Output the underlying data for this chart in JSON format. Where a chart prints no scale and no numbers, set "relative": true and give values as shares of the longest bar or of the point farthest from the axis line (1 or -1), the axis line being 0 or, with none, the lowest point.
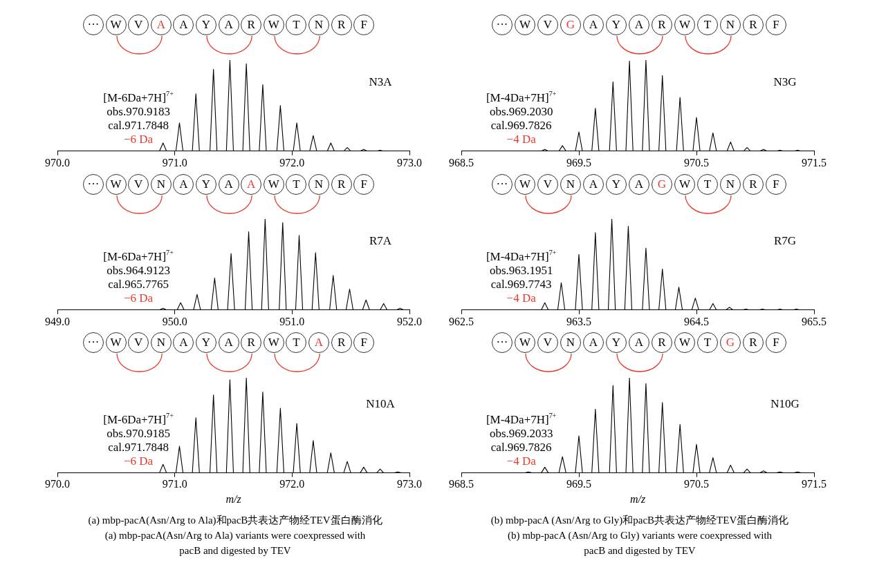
{
  "chart_data": [
    {
      "type": "other",
      "categories": [
        "···",
        "W",
        "V",
        "A",
        "A",
        "Y",
        "A",
        "R",
        "W",
        "T",
        "N",
        "R",
        "F"
      ]
    },
    {
      "type": "other",
      "categories": [
        "···",
        "W",
        "V",
        "G",
        "A",
        "Y",
        "A",
        "R",
        "W",
        "T",
        "N",
        "R",
        "F"
      ]
    },
    {
      "type": "line",
      "relative": true,
      "xlim": [
        970.0,
        973.0
      ],
      "xticks": [
        {
          "value": 970,
          "label": "970.0"
        },
        {
          "value": 971,
          "label": "971.0"
        },
        {
          "value": 972,
          "label": "972.0"
        },
        {
          "value": 973,
          "label": "973.0"
        }
      ],
      "annotations": [
        "N3A",
        "[M-6Da+7H]$^{7+}$",
        "obs.970.9183",
        "cal.971.7848",
        "−6 Da"
      ],
      "series": [
        {
          "color": "#000000",
          "x": [
            970.0,
            970.87,
            970.9,
            970.93,
            971.01,
            971.04,
            971.07,
            971.15,
            971.18,
            971.21,
            971.3,
            971.33,
            971.36,
            971.44,
            971.47,
            971.5,
            971.58,
            971.61,
            971.64,
            971.72,
            971.75,
            971.78,
            971.87,
            971.9,
            971.93,
            972.01,
            972.04,
            972.07,
            972.15,
            972.18,
            972.21,
            972.3,
            972.33,
            972.36,
            972.44,
            972.47,
            972.5,
            972.58,
            972.61,
            972.64,
            972.72,
            972.75,
            972.78,
            973.0
          ],
          "values": [
            0,
            0,
            0.09,
            0,
            0,
            0.31,
            0,
            0,
            0.63,
            0,
            0,
            0.9,
            0,
            0,
            1,
            0,
            0,
            0.96,
            0,
            0,
            0.73,
            0,
            0,
            0.5,
            0,
            0,
            0.31,
            0,
            0,
            0.17,
            0,
            0,
            0.09,
            0,
            0,
            0.04,
            0,
            0,
            0.02,
            0,
            0,
            0.01,
            0,
            0
          ]
        }
      ]
    },
    {
      "type": "line",
      "relative": true,
      "xlim": [
        968.5,
        971.5
      ],
      "xticks": [
        {
          "value": 968.5,
          "label": "968.5"
        },
        {
          "value": 969.5,
          "label": "969.5"
        },
        {
          "value": 970.5,
          "label": "970.5"
        },
        {
          "value": 971.5,
          "label": "971.5"
        }
      ],
      "annotations": [
        "N3G",
        "[M-4Da+7H]$^{7+}$",
        "obs.969.2030",
        "cal.969.7826",
        "−4 Da"
      ],
      "series": [
        {
          "color": "#000000",
          "x": [
            968.5,
            969.18,
            969.21,
            969.24,
            969.33,
            969.36,
            969.39,
            969.47,
            969.5,
            969.53,
            969.61,
            969.64,
            969.67,
            969.76,
            969.79,
            969.82,
            969.9,
            969.93,
            969.96,
            970.04,
            970.07,
            970.1,
            970.18,
            970.21,
            970.24,
            970.33,
            970.36,
            970.39,
            970.47,
            970.5,
            970.53,
            970.61,
            970.64,
            970.67,
            970.76,
            970.79,
            970.82,
            970.9,
            970.93,
            970.96,
            971.04,
            971.07,
            971.1,
            971.18,
            971.21,
            971.24,
            971.33,
            971.36,
            971.39,
            971.5
          ],
          "values": [
            0,
            0,
            0.02,
            0,
            0,
            0.06,
            0,
            0,
            0.21,
            0,
            0,
            0.47,
            0,
            0,
            0.76,
            0,
            0,
            0.99,
            0,
            0,
            1,
            0,
            0,
            0.83,
            0,
            0,
            0.59,
            0,
            0,
            0.37,
            0,
            0,
            0.2,
            0,
            0,
            0.1,
            0,
            0,
            0.04,
            0,
            0,
            0.02,
            0,
            0,
            0.01,
            0,
            0,
            0.01,
            0,
            0
          ]
        }
      ]
    },
    {
      "type": "other",
      "categories": [
        "···",
        "W",
        "V",
        "N",
        "A",
        "Y",
        "A",
        "A",
        "W",
        "T",
        "N",
        "R",
        "F"
      ]
    },
    {
      "type": "other",
      "categories": [
        "···",
        "W",
        "V",
        "N",
        "A",
        "Y",
        "A",
        "G",
        "W",
        "T",
        "N",
        "R",
        "F"
      ]
    },
    {
      "type": "line",
      "relative": true,
      "xlim": [
        949.0,
        952.0
      ],
      "xticks": [
        {
          "value": 949,
          "label": "949.0"
        },
        {
          "value": 950,
          "label": "950.0"
        },
        {
          "value": 951,
          "label": "951.0"
        },
        {
          "value": 952,
          "label": "952.0"
        }
      ],
      "annotations": [
        "R7A",
        "[M-6Da+7H]$^{7+}$",
        "obs.964.9123",
        "cal.965.7765",
        "−6 Da"
      ],
      "series": [
        {
          "color": "#000000",
          "x": [
            949.8,
            949.87,
            949.9,
            949.93,
            950.02,
            950.05,
            950.08,
            950.16,
            950.19,
            950.22,
            950.31,
            950.34,
            950.37,
            950.45,
            950.48,
            950.51,
            950.6,
            950.63,
            950.66,
            950.74,
            950.77,
            950.8,
            950.89,
            950.92,
            950.95,
            951.03,
            951.06,
            951.09,
            951.17,
            951.2,
            951.23,
            951.32,
            951.35,
            951.38,
            951.46,
            951.49,
            951.52,
            951.6,
            951.63,
            951.66,
            951.75,
            951.78,
            951.81,
            951.89,
            951.92,
            951.95,
            952.0
          ],
          "values": [
            0,
            0,
            0.02,
            0,
            0,
            0.08,
            0,
            0,
            0.17,
            0,
            0,
            0.35,
            0,
            0,
            0.62,
            0,
            0,
            0.86,
            0,
            0,
            1,
            0,
            0,
            0.96,
            0,
            0,
            0.82,
            0,
            0,
            0.63,
            0,
            0,
            0.38,
            0,
            0,
            0.23,
            0,
            0,
            0.11,
            0,
            0,
            0.07,
            0,
            0,
            0.02,
            0,
            0
          ]
        }
      ]
    },
    {
      "type": "line",
      "relative": true,
      "xlim": [
        962.5,
        965.5
      ],
      "xticks": [
        {
          "value": 962.5,
          "label": "962.5"
        },
        {
          "value": 963.5,
          "label": "963.5"
        },
        {
          "value": 964.5,
          "label": "964.5"
        },
        {
          "value": 965.5,
          "label": "965.5"
        }
      ],
      "annotations": [
        "R7G",
        "[M-4Da+7H]$^{7+}$",
        "obs.963.1951",
        "cal.969.7743",
        "−4 Da"
      ],
      "series": [
        {
          "color": "#000000",
          "x": [
            962.5,
            963.18,
            963.21,
            963.24,
            963.32,
            963.35,
            963.38,
            963.47,
            963.5,
            963.53,
            963.61,
            963.64,
            963.67,
            963.75,
            963.78,
            963.81,
            963.89,
            963.92,
            963.95,
            964.04,
            964.07,
            964.1,
            964.18,
            964.21,
            964.24,
            964.32,
            964.35,
            964.38,
            964.46,
            964.49,
            964.52,
            964.61,
            964.64,
            964.67,
            964.75,
            964.78,
            964.81,
            964.89,
            964.92,
            964.95,
            965.03,
            965.06,
            965.09,
            965.18,
            965.21,
            965.24,
            965.32,
            965.35,
            965.38,
            965.5
          ],
          "values": [
            0,
            0,
            0.08,
            0,
            0,
            0.3,
            0,
            0,
            0.61,
            0,
            0,
            0.85,
            0,
            0,
            1,
            0,
            0,
            0.92,
            0,
            0,
            0.68,
            0,
            0,
            0.45,
            0,
            0,
            0.25,
            0,
            0,
            0.13,
            0,
            0,
            0.07,
            0,
            0,
            0.03,
            0,
            0,
            0.01,
            0,
            0,
            0.01,
            0,
            0,
            0.01,
            0,
            0,
            0.01,
            0,
            0
          ]
        }
      ]
    },
    {
      "type": "other",
      "categories": [
        "···",
        "W",
        "V",
        "N",
        "A",
        "Y",
        "A",
        "R",
        "W",
        "T",
        "A",
        "R",
        "F"
      ]
    },
    {
      "type": "other",
      "categories": [
        "···",
        "W",
        "V",
        "N",
        "A",
        "Y",
        "A",
        "R",
        "W",
        "T",
        "G",
        "R",
        "F"
      ]
    },
    {
      "type": "line",
      "relative": true,
      "xlabel": "m/z",
      "xlim": [
        970.0,
        973.0
      ],
      "xticks": [
        {
          "value": 970,
          "label": "970.0"
        },
        {
          "value": 971,
          "label": "971.0"
        },
        {
          "value": 972,
          "label": "972.0"
        },
        {
          "value": 973,
          "label": "973.0"
        }
      ],
      "annotations": [
        "N10A",
        "[M-6Da+7H]$^{7+}$",
        "obs.970.9185",
        "cal.971.7848",
        "−6 Da",
        "(a) mbp-pacA(Asn/Arg to Ala)和pacB共表达产物经TEV蛋白酶消化",
        "(a) mbp-pacA(Asn/Arg to Ala) variants were coexpressed with",
        "pacB and digested by TEV"
      ],
      "series": [
        {
          "color": "#000000",
          "x": [
            970.0,
            970.87,
            970.9,
            970.93,
            971.01,
            971.04,
            971.07,
            971.15,
            971.18,
            971.21,
            971.3,
            971.33,
            971.36,
            971.44,
            971.47,
            971.5,
            971.58,
            971.61,
            971.64,
            971.72,
            971.75,
            971.78,
            971.87,
            971.9,
            971.93,
            972.01,
            972.04,
            972.07,
            972.15,
            972.18,
            972.21,
            972.3,
            972.33,
            972.36,
            972.44,
            972.47,
            972.5,
            972.58,
            972.61,
            972.64,
            972.72,
            972.75,
            972.78,
            972.87,
            972.9,
            972.93,
            973.0
          ],
          "values": [
            0,
            0,
            0.09,
            0,
            0,
            0.28,
            0,
            0,
            0.58,
            0,
            0,
            0.82,
            0,
            0,
            0.98,
            0,
            0,
            1,
            0,
            0,
            0.85,
            0,
            0,
            0.68,
            0,
            0,
            0.52,
            0,
            0,
            0.34,
            0,
            0,
            0.21,
            0,
            0,
            0.12,
            0,
            0,
            0.06,
            0,
            0,
            0.04,
            0,
            0,
            0.01,
            0,
            0
          ]
        }
      ]
    },
    {
      "type": "line",
      "relative": true,
      "xlabel": "m/z",
      "xlim": [
        968.5,
        971.5
      ],
      "xticks": [
        {
          "value": 968.5,
          "label": "968.5"
        },
        {
          "value": 969.5,
          "label": "969.5"
        },
        {
          "value": 970.5,
          "label": "970.5"
        },
        {
          "value": 971.5,
          "label": "971.5"
        }
      ],
      "annotations": [
        "N10G",
        "[M-4Da+7H]$^{7+}$",
        "obs.969.2033",
        "cal.969.7826",
        "−4 Da",
        "(b) mbp-pacA (Asn/Arg to Gly)和pacB共表达产物经TEV蛋白酶消化",
        "(b) mbp-pacA (Asn/Arg to Gly) variants were coexpressed with",
        "pacB and digested by TEV"
      ],
      "series": [
        {
          "color": "#000000",
          "x": [
            968.5,
            969.04,
            969.07,
            969.1,
            969.18,
            969.21,
            969.24,
            969.33,
            969.36,
            969.39,
            969.47,
            969.5,
            969.53,
            969.61,
            969.64,
            969.67,
            969.76,
            969.79,
            969.82,
            969.9,
            969.93,
            969.96,
            970.04,
            970.07,
            970.1,
            970.18,
            970.21,
            970.24,
            970.33,
            970.36,
            970.39,
            970.47,
            970.5,
            970.53,
            970.61,
            970.64,
            970.67,
            970.76,
            970.79,
            970.82,
            970.9,
            970.93,
            970.96,
            971.04,
            971.07,
            971.1,
            971.18,
            971.21,
            971.24,
            971.33,
            971.36,
            971.39,
            971.5
          ],
          "values": [
            0,
            0,
            0.01,
            0,
            0,
            0.06,
            0,
            0,
            0.17,
            0,
            0,
            0.39,
            0,
            0,
            0.67,
            0,
            0,
            0.92,
            0,
            0,
            1,
            0,
            0,
            0.94,
            0,
            0,
            0.74,
            0,
            0,
            0.51,
            0,
            0,
            0.3,
            0,
            0,
            0.16,
            0,
            0,
            0.08,
            0,
            0,
            0.04,
            0,
            0,
            0.02,
            0,
            0,
            0.01,
            0,
            0,
            0.01,
            0,
            0
          ]
        }
      ]
    }
  ]
}
